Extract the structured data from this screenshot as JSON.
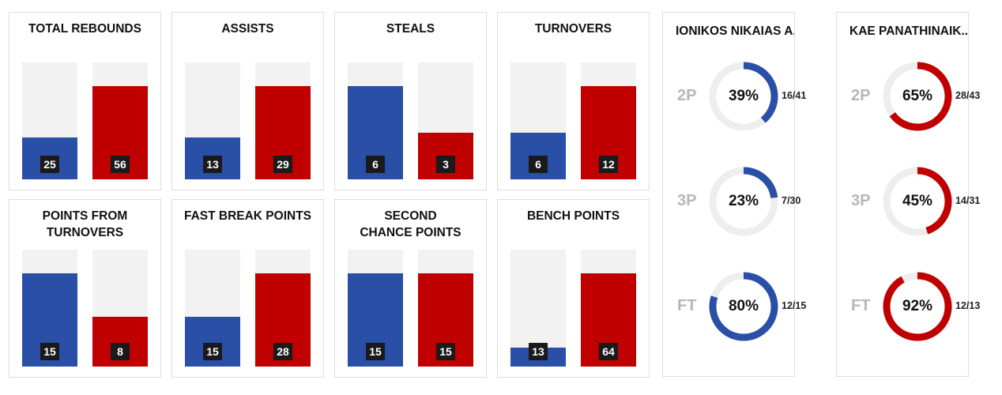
{
  "colors": {
    "home": "#2a4fa6",
    "away": "#c00000",
    "track": "#f2f2f2",
    "ring_track": "#eeeeee"
  },
  "chart_data": [
    {
      "type": "bar",
      "title": "TOTAL REBOUNDS",
      "values": [
        25,
        56
      ]
    },
    {
      "type": "bar",
      "title": "ASSISTS",
      "values": [
        13,
        29
      ]
    },
    {
      "type": "bar",
      "title": "STEALS",
      "values": [
        6,
        3
      ]
    },
    {
      "type": "bar",
      "title": "TURNOVERS",
      "values": [
        6,
        12
      ]
    },
    {
      "type": "bar",
      "title": "POINTS FROM TURNOVERS",
      "values": [
        15,
        8
      ]
    },
    {
      "type": "bar",
      "title": "FAST BREAK POINTS",
      "values": [
        15,
        28
      ]
    },
    {
      "type": "bar",
      "title": "SECOND CHANCE POINTS",
      "values": [
        15,
        15
      ]
    },
    {
      "type": "bar",
      "title": "BENCH POINTS",
      "values": [
        13,
        64
      ]
    },
    {
      "type": "pie",
      "title": "IONIKOS NIKAIAS A...",
      "rows": [
        {
          "label": "2P",
          "percent": 39,
          "made_attempted": "16/41"
        },
        {
          "label": "3P",
          "percent": 23,
          "made_attempted": "7/30"
        },
        {
          "label": "FT",
          "percent": 80,
          "made_attempted": "12/15"
        }
      ]
    },
    {
      "type": "pie",
      "title": "KAE PANATHINAIK...",
      "rows": [
        {
          "label": "2P",
          "percent": 65,
          "made_attempted": "28/43"
        },
        {
          "label": "3P",
          "percent": 45,
          "made_attempted": "14/31"
        },
        {
          "label": "FT",
          "percent": 92,
          "made_attempted": "12/13"
        }
      ]
    }
  ]
}
